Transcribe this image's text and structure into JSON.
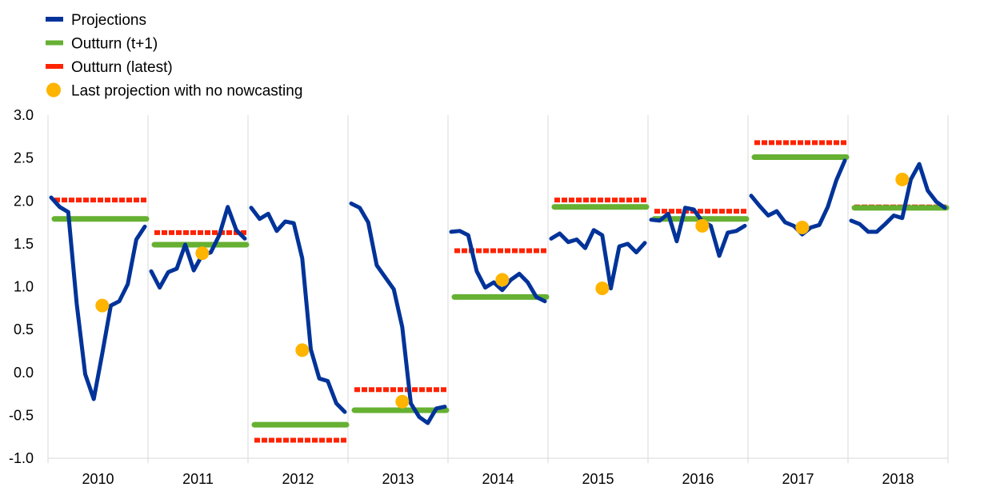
{
  "chart_data": {
    "type": "line",
    "title": "",
    "xlabel": "",
    "ylabel": "",
    "ylim": [
      -1.0,
      3.0
    ],
    "yticks": [
      "3.0",
      "2.5",
      "2.0",
      "1.5",
      "1.0",
      "0.5",
      "0.0",
      "-0.5",
      "-1.0"
    ],
    "categories": [
      "2010",
      "2011",
      "2012",
      "2013",
      "2014",
      "2015",
      "2016",
      "2017",
      "2018"
    ],
    "grid": "vertical",
    "legend_position": "top-left",
    "legend": [
      {
        "label": "Projections",
        "color": "#003399",
        "marker": "line"
      },
      {
        "label": "Outturn (t+1)",
        "color": "#66b032",
        "marker": "line"
      },
      {
        "label": "Outturn (latest)",
        "color": "#ff2200",
        "marker": "line"
      },
      {
        "label": "Last projection with no nowcasting",
        "color": "#ffb400",
        "marker": "dot"
      }
    ],
    "series": [
      {
        "name": "Projections",
        "color": "#003399",
        "values": [
          [
            2.04,
            1.93,
            1.87,
            0.8,
            -0.02,
            -0.31,
            0.22,
            0.78,
            0.83,
            1.03,
            1.55,
            1.7
          ],
          [
            1.18,
            0.99,
            1.17,
            1.21,
            1.49,
            1.19,
            1.37,
            1.4,
            1.6,
            1.93,
            1.66,
            1.56
          ],
          [
            1.92,
            1.79,
            1.85,
            1.65,
            1.76,
            1.74,
            1.33,
            0.27,
            -0.07,
            -0.1,
            -0.36,
            -0.46
          ],
          [
            1.97,
            1.92,
            1.75,
            1.25,
            1.11,
            0.97,
            0.53,
            -0.36,
            -0.52,
            -0.59,
            -0.42,
            -0.4
          ],
          [
            1.64,
            1.65,
            1.6,
            1.18,
            0.99,
            1.05,
            0.96,
            1.08,
            1.15,
            1.05,
            0.88,
            0.83
          ],
          [
            1.56,
            1.62,
            1.52,
            1.55,
            1.45,
            1.66,
            1.6,
            0.98,
            1.47,
            1.5,
            1.4,
            1.51
          ],
          [
            1.78,
            1.77,
            1.85,
            1.53,
            1.92,
            1.9,
            1.76,
            1.71,
            1.36,
            1.63,
            1.65,
            1.71
          ],
          [
            2.06,
            1.94,
            1.83,
            1.88,
            1.75,
            1.71,
            1.61,
            1.69,
            1.72,
            1.93,
            2.24,
            2.47
          ],
          [
            1.77,
            1.73,
            1.64,
            1.64,
            1.73,
            1.83,
            1.8,
            2.25,
            2.43,
            2.12,
            1.99,
            1.92
          ]
        ]
      },
      {
        "name": "Outturn (t+1)",
        "color": "#66b032",
        "values": [
          1.79,
          1.49,
          -0.61,
          -0.44,
          0.88,
          1.93,
          1.79,
          2.51,
          1.92
        ]
      },
      {
        "name": "Outturn (latest)",
        "color": "#ff2200",
        "values": [
          2.01,
          1.63,
          -0.79,
          -0.2,
          1.42,
          2.01,
          1.88,
          2.68,
          1.93
        ]
      },
      {
        "name": "Last projection with no nowcasting",
        "color": "#ffb400",
        "points": [
          {
            "year": "2010",
            "month_index": 6,
            "value": 0.78
          },
          {
            "year": "2011",
            "month_index": 6,
            "value": 1.39
          },
          {
            "year": "2012",
            "month_index": 6,
            "value": 0.26
          },
          {
            "year": "2013",
            "month_index": 6,
            "value": -0.34
          },
          {
            "year": "2014",
            "month_index": 6,
            "value": 1.08
          },
          {
            "year": "2015",
            "month_index": 6,
            "value": 0.98
          },
          {
            "year": "2016",
            "month_index": 6,
            "value": 1.71
          },
          {
            "year": "2017",
            "month_index": 6,
            "value": 1.69
          },
          {
            "year": "2018",
            "month_index": 6,
            "value": 2.25
          }
        ]
      }
    ]
  }
}
